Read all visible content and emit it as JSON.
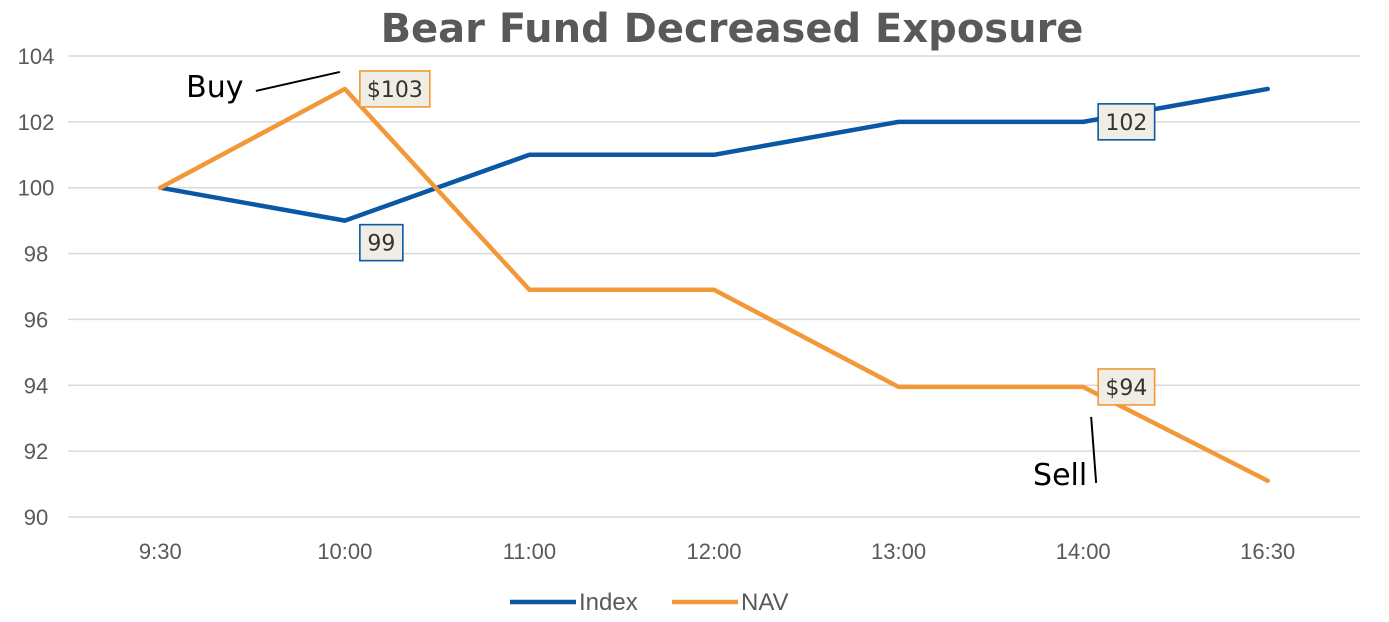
{
  "chart_data": {
    "type": "line",
    "title": "Bear Fund Decreased Exposure",
    "categories": [
      "9:30",
      "10:00",
      "11:00",
      "12:00",
      "13:00",
      "14:00",
      "16:30"
    ],
    "ylim": [
      90,
      104
    ],
    "yticks": [
      90,
      92,
      94,
      96,
      98,
      100,
      102,
      104
    ],
    "grid": true,
    "legend_position": "bottom",
    "series": [
      {
        "name": "Index",
        "color": "#0a58a5",
        "values": [
          100,
          99,
          101,
          101,
          102,
          102,
          103
        ]
      },
      {
        "name": "NAV",
        "color": "#f39839",
        "values": [
          100,
          103,
          96.9,
          96.9,
          93.95,
          93.95,
          91.1
        ]
      }
    ],
    "data_labels": [
      {
        "series": 0,
        "point": 1,
        "text": "99"
      },
      {
        "series": 0,
        "point": 5,
        "text": "102"
      },
      {
        "series": 1,
        "point": 1,
        "text": "$103"
      },
      {
        "series": 1,
        "point": 5,
        "text": "$94"
      }
    ],
    "annotations": [
      {
        "text": "Buy",
        "series": 1,
        "point": 1
      },
      {
        "text": "Sell",
        "series": 1,
        "point": 5
      }
    ]
  }
}
